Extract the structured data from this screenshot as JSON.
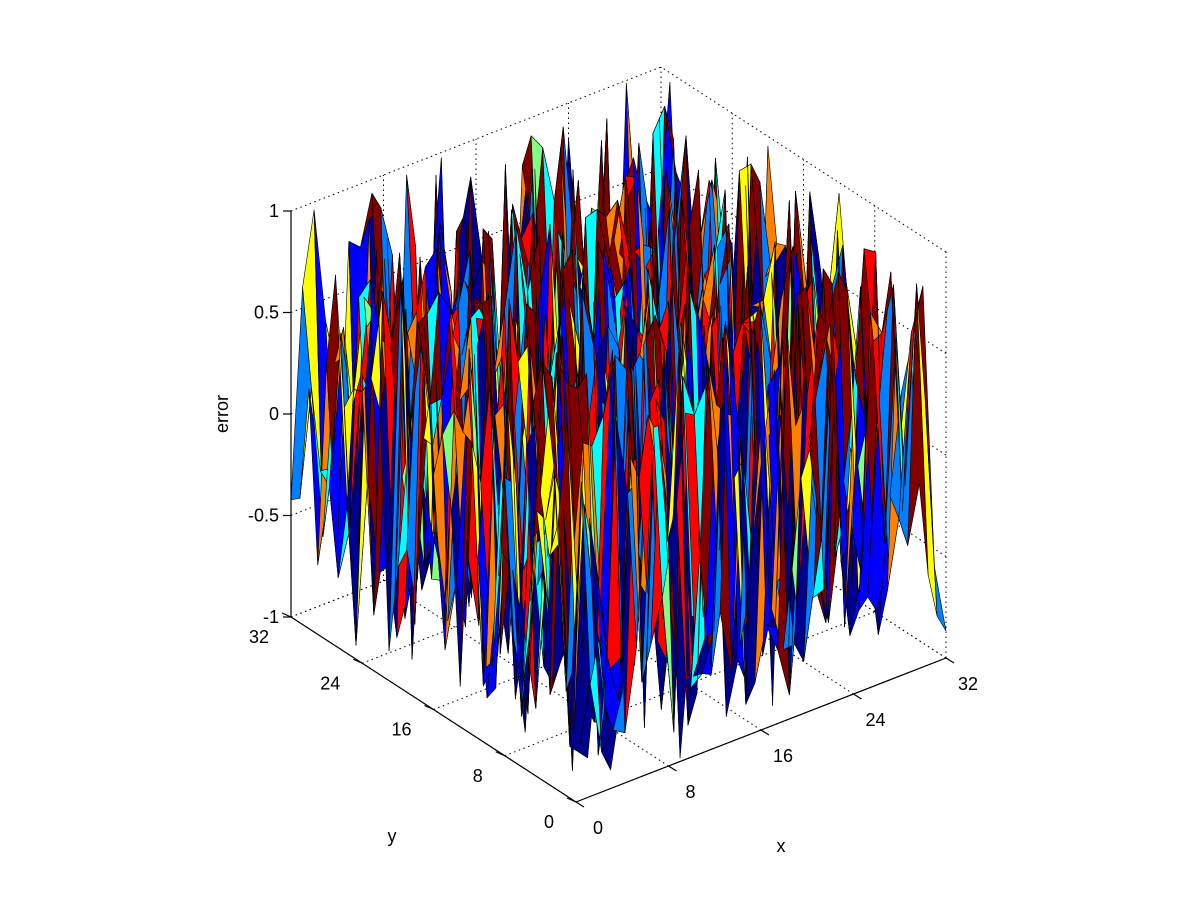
{
  "chart_data": {
    "type": "surface",
    "title": "",
    "xlabel": "x",
    "ylabel": "y",
    "zlabel": "error",
    "xlim": [
      0,
      32
    ],
    "ylim": [
      0,
      32
    ],
    "zlim": [
      -1,
      1
    ],
    "x_ticks": [
      "0",
      "8",
      "16",
      "24",
      "32"
    ],
    "y_ticks": [
      "0",
      "8",
      "16",
      "24",
      "32"
    ],
    "z_ticks": [
      "-1",
      "-0.5",
      "0",
      "0.5",
      "1"
    ],
    "grid": true,
    "view": "isometric (az -37.5, el 30)",
    "colormap": [
      "#00008f",
      "#0000ff",
      "#0080ff",
      "#00ffff",
      "#80ff80",
      "#ffff00",
      "#ff8000",
      "#ff0000",
      "#800000"
    ],
    "grid_points_per_axis": 33,
    "description_of_values": "random error surface: z values fluctuate between -1 and 1 across the 32x32 grid"
  }
}
